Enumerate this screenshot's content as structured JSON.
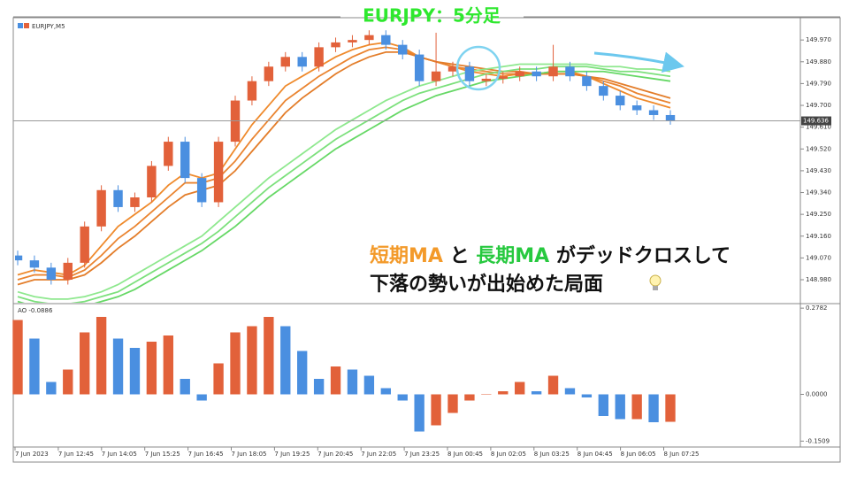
{
  "chart_data": [
    {
      "type": "candlestick",
      "title": "EURJPY：5分足",
      "symbol_label": "EURJPY,M5",
      "ylim": [
        148.885,
        150.062
      ],
      "yticks": [
        {
          "value": 148.98,
          "label": "148.980"
        },
        {
          "value": 149.07,
          "label": "149.070"
        },
        {
          "value": 149.16,
          "label": "149.160"
        },
        {
          "value": 149.25,
          "label": "149.250"
        },
        {
          "value": 149.34,
          "label": "149.340"
        },
        {
          "value": 149.43,
          "label": "149.430"
        },
        {
          "value": 149.52,
          "label": "149.520"
        },
        {
          "value": 149.61,
          "label": "149.610"
        },
        {
          "value": 149.7,
          "label": "149.700"
        },
        {
          "value": 149.79,
          "label": "149.790"
        },
        {
          "value": 149.88,
          "label": "149.880"
        },
        {
          "value": 149.97,
          "label": "149.970"
        }
      ],
      "current_price": {
        "value": 149.636,
        "label": "149.636"
      },
      "up_color": "#e2613a",
      "down_color": "#4a8fe0",
      "candles": {
        "open": [
          149.08,
          149.06,
          149.03,
          148.98,
          149.05,
          149.2,
          149.35,
          149.28,
          149.32,
          149.45,
          149.55,
          149.4,
          149.3,
          149.55,
          149.72,
          149.8,
          149.86,
          149.9,
          149.86,
          149.94,
          149.96,
          149.97,
          149.99,
          149.95,
          149.91,
          149.8,
          149.84,
          149.86,
          149.8,
          149.81,
          149.82,
          149.84,
          149.82,
          149.86,
          149.82,
          149.78,
          149.74,
          149.7,
          149.68,
          149.66
        ],
        "high": [
          149.1,
          149.08,
          149.05,
          149.07,
          149.22,
          149.37,
          149.37,
          149.34,
          149.47,
          149.57,
          149.57,
          149.42,
          149.57,
          149.74,
          149.82,
          149.88,
          149.92,
          149.92,
          149.96,
          149.98,
          149.99,
          150.01,
          150.01,
          149.97,
          149.93,
          150.0,
          149.88,
          149.88,
          149.83,
          149.84,
          149.86,
          149.86,
          149.95,
          149.88,
          149.84,
          149.8,
          149.76,
          149.72,
          149.7,
          149.68
        ],
        "low": [
          149.04,
          149.01,
          148.96,
          148.96,
          149.03,
          149.18,
          149.26,
          149.26,
          149.3,
          149.43,
          149.38,
          149.28,
          149.28,
          149.53,
          149.7,
          149.78,
          149.84,
          149.84,
          149.84,
          149.92,
          149.94,
          149.95,
          149.93,
          149.89,
          149.78,
          149.78,
          149.82,
          149.78,
          149.78,
          149.79,
          149.8,
          149.8,
          149.8,
          149.8,
          149.76,
          149.72,
          149.68,
          149.66,
          149.64,
          149.62
        ],
        "close": [
          149.06,
          149.03,
          148.98,
          149.05,
          149.2,
          149.35,
          149.28,
          149.32,
          149.45,
          149.55,
          149.4,
          149.3,
          149.55,
          149.72,
          149.8,
          149.86,
          149.9,
          149.86,
          149.94,
          149.96,
          149.97,
          149.99,
          149.95,
          149.91,
          149.8,
          149.84,
          149.86,
          149.8,
          149.81,
          149.82,
          149.84,
          149.82,
          149.86,
          149.82,
          149.78,
          149.74,
          149.7,
          149.68,
          149.66,
          149.636
        ]
      },
      "lines": [
        {
          "color": "#ef8a2c",
          "values": [
            149.0,
            149.02,
            149.01,
            149.0,
            149.04,
            149.12,
            149.2,
            149.25,
            149.3,
            149.37,
            149.42,
            149.4,
            149.42,
            149.52,
            149.62,
            149.7,
            149.78,
            149.82,
            149.86,
            149.9,
            149.93,
            149.95,
            149.96,
            149.94,
            149.9,
            149.88,
            149.86,
            149.84,
            149.83,
            149.82,
            149.83,
            149.83,
            149.84,
            149.84,
            149.82,
            149.79,
            149.76,
            149.73,
            149.71,
            149.69
          ]
        },
        {
          "color": "#ea8430",
          "values": [
            148.98,
            149.0,
            149.0,
            148.99,
            149.02,
            149.08,
            149.15,
            149.2,
            149.26,
            149.32,
            149.38,
            149.38,
            149.4,
            149.47,
            149.56,
            149.64,
            149.72,
            149.77,
            149.82,
            149.86,
            149.9,
            149.93,
            149.94,
            149.93,
            149.9,
            149.88,
            149.86,
            149.85,
            149.84,
            149.83,
            149.83,
            149.83,
            149.83,
            149.83,
            149.82,
            149.8,
            149.78,
            149.75,
            149.73,
            149.71
          ]
        },
        {
          "color": "#e37d2a",
          "values": [
            148.96,
            148.98,
            148.98,
            148.98,
            149.0,
            149.05,
            149.11,
            149.16,
            149.22,
            149.28,
            149.33,
            149.35,
            149.37,
            149.43,
            149.51,
            149.59,
            149.67,
            149.73,
            149.78,
            149.83,
            149.87,
            149.9,
            149.92,
            149.92,
            149.9,
            149.88,
            149.87,
            149.86,
            149.85,
            149.84,
            149.84,
            149.83,
            149.83,
            149.83,
            149.82,
            149.81,
            149.79,
            149.77,
            149.75,
            149.73
          ]
        },
        {
          "color": "#8ee88e",
          "values": [
            148.93,
            148.91,
            148.9,
            148.9,
            148.91,
            148.93,
            148.96,
            149.0,
            149.04,
            149.08,
            149.12,
            149.16,
            149.22,
            149.28,
            149.34,
            149.4,
            149.45,
            149.5,
            149.55,
            149.6,
            149.64,
            149.68,
            149.72,
            149.75,
            149.78,
            149.8,
            149.82,
            149.84,
            149.85,
            149.86,
            149.87,
            149.87,
            149.87,
            149.87,
            149.87,
            149.86,
            149.86,
            149.85,
            149.85,
            149.84
          ]
        },
        {
          "color": "#7ce07c",
          "values": [
            148.91,
            148.89,
            148.88,
            148.88,
            148.89,
            148.91,
            148.93,
            148.97,
            149.01,
            149.05,
            149.09,
            149.13,
            149.18,
            149.24,
            149.3,
            149.36,
            149.41,
            149.46,
            149.51,
            149.56,
            149.6,
            149.64,
            149.68,
            149.72,
            149.75,
            149.77,
            149.79,
            149.81,
            149.83,
            149.84,
            149.85,
            149.85,
            149.86,
            149.86,
            149.86,
            149.85,
            149.84,
            149.84,
            149.83,
            149.82
          ]
        },
        {
          "color": "#66d866",
          "values": [
            148.89,
            148.87,
            148.86,
            148.86,
            148.87,
            148.89,
            148.91,
            148.94,
            148.98,
            149.02,
            149.06,
            149.1,
            149.15,
            149.2,
            149.26,
            149.32,
            149.37,
            149.42,
            149.47,
            149.52,
            149.56,
            149.6,
            149.64,
            149.68,
            149.71,
            149.74,
            149.76,
            149.78,
            149.8,
            149.81,
            149.82,
            149.83,
            149.84,
            149.84,
            149.84,
            149.84,
            149.83,
            149.82,
            149.81,
            149.8
          ]
        }
      ],
      "annotations": [
        [
          {
            "text": "短期MA",
            "color": "#f39a2a"
          },
          {
            "text": " と ",
            "color": "#111111"
          },
          {
            "text": "長期MA",
            "color": "#27c93f"
          },
          {
            "text": " がデッドクロスして",
            "color": "#111111"
          }
        ],
        [
          {
            "text": "下落の勢いが出始めた局面",
            "color": "#111111"
          }
        ]
      ]
    },
    {
      "type": "bar",
      "label": "AO -0.0886",
      "ylim": [
        -0.17,
        0.29
      ],
      "yticks": [
        0.2782,
        {
          "value": 0,
          "label": "0.0000"
        },
        -0.1509
      ],
      "up_color": "#e2613a",
      "down_color": "#4a8fe0",
      "values": [
        0.24,
        0.18,
        0.04,
        0.08,
        0.2,
        0.25,
        0.18,
        0.15,
        0.17,
        0.19,
        0.05,
        -0.02,
        0.1,
        0.2,
        0.22,
        0.25,
        0.22,
        0.14,
        0.05,
        0.09,
        0.08,
        0.06,
        0.02,
        -0.02,
        -0.12,
        -0.1,
        -0.06,
        -0.02,
        0.0,
        0.01,
        0.04,
        0.01,
        0.06,
        0.02,
        -0.01,
        -0.07,
        -0.08,
        -0.08,
        -0.09,
        -0.0886
      ],
      "xtick_labels": [
        "7 Jun 2023",
        "7 Jun 12:45",
        "7 Jun 14:05",
        "7 Jun 15:25",
        "7 Jun 16:45",
        "7 Jun 18:05",
        "7 Jun 19:25",
        "7 Jun 20:45",
        "7 Jun 22:05",
        "7 Jun 23:25",
        "8 Jun 00:45",
        "8 Jun 02:05",
        "8 Jun 03:25",
        "8 Jun 04:45",
        "8 Jun 06:05",
        "8 Jun 07:25"
      ]
    }
  ]
}
